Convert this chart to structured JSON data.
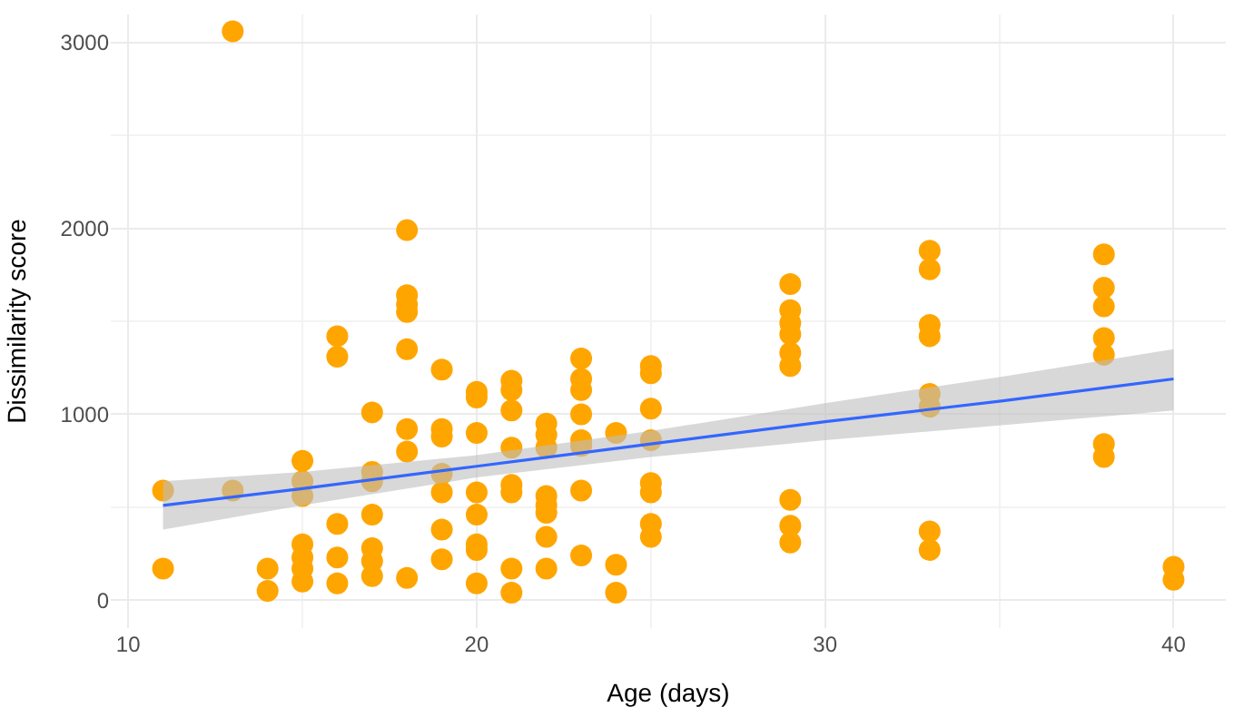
{
  "chart_data": {
    "type": "scatter",
    "xlabel": "Age (days)",
    "ylabel": "Dissimilarity score",
    "xlim": [
      9.5,
      41.5
    ],
    "ylim": [
      -150,
      3150
    ],
    "xticks": [
      10,
      20,
      30,
      40
    ],
    "yticks": [
      0,
      1000,
      2000,
      3000
    ],
    "grid": true,
    "marker": "circle",
    "series": [
      {
        "color": "#ffa500",
        "x": [
          11,
          11,
          13,
          13,
          14,
          14,
          15,
          15,
          15,
          15,
          15,
          15,
          15,
          16,
          16,
          16,
          16,
          16,
          17,
          17,
          17,
          17,
          17,
          17,
          17,
          18,
          18,
          18,
          18,
          18,
          18,
          18,
          18,
          19,
          19,
          19,
          19,
          19,
          19,
          19,
          20,
          20,
          20,
          20,
          20,
          20,
          20,
          20,
          21,
          21,
          21,
          21,
          21,
          21,
          21,
          21,
          22,
          22,
          22,
          22,
          22,
          22,
          22,
          22,
          23,
          23,
          23,
          23,
          23,
          23,
          23,
          23,
          24,
          24,
          24,
          25,
          25,
          25,
          25,
          25,
          25,
          25,
          25,
          29,
          29,
          29,
          29,
          29,
          29,
          29,
          29,
          29,
          33,
          33,
          33,
          33,
          33,
          33,
          33,
          33,
          38,
          38,
          38,
          38,
          38,
          38,
          38,
          40,
          40
        ],
        "values": [
          590,
          170,
          3060,
          590,
          170,
          50,
          750,
          640,
          560,
          300,
          230,
          170,
          100,
          1420,
          1310,
          410,
          230,
          90,
          1010,
          690,
          640,
          460,
          280,
          210,
          130,
          1990,
          1640,
          1590,
          1550,
          1350,
          920,
          800,
          120,
          1240,
          920,
          880,
          680,
          580,
          380,
          220,
          1120,
          1090,
          900,
          580,
          460,
          300,
          270,
          90,
          1180,
          1130,
          1020,
          820,
          620,
          580,
          170,
          40,
          950,
          890,
          820,
          560,
          510,
          470,
          340,
          170,
          1300,
          1190,
          1130,
          1000,
          860,
          830,
          590,
          240,
          900,
          190,
          40,
          1260,
          1220,
          1030,
          860,
          630,
          580,
          410,
          340,
          1700,
          1560,
          1490,
          1430,
          1330,
          1260,
          540,
          400,
          310,
          1880,
          1780,
          1480,
          1420,
          1110,
          1040,
          370,
          270,
          1860,
          1680,
          1580,
          1410,
          1320,
          840,
          770,
          180,
          110
        ]
      },
      {
        "type": "line",
        "color": "#3366ff",
        "line_style": "solid",
        "marker": "none",
        "x": [
          11,
          15,
          20,
          25,
          30,
          35,
          40
        ],
        "values": [
          510,
          600,
          720,
          840,
          960,
          1070,
          1190
        ],
        "lower": [
          380,
          510,
          660,
          770,
          860,
          940,
          1020
        ],
        "upper": [
          640,
          690,
          780,
          910,
          1060,
          1200,
          1350
        ]
      }
    ]
  }
}
